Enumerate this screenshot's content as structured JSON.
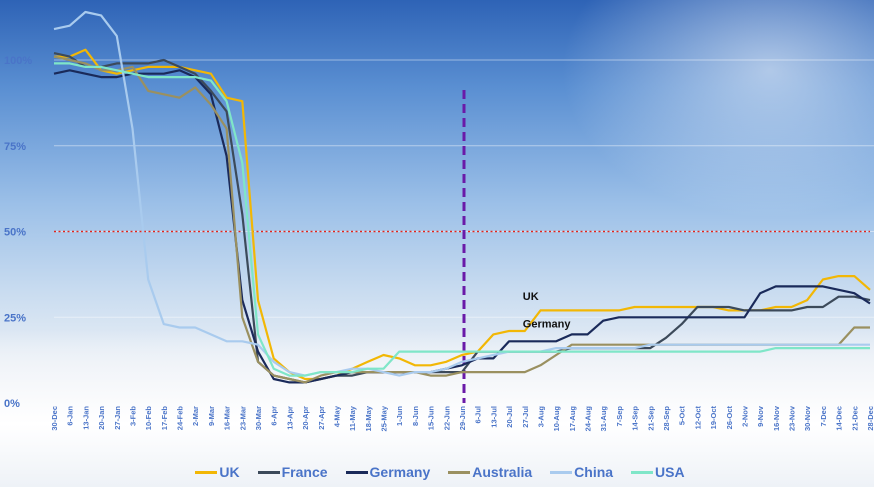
{
  "chart_data": {
    "type": "line",
    "title": "",
    "xlabel": "",
    "ylabel": "",
    "ylim": [
      0,
      100
    ],
    "y_ticks": [
      "0%",
      "25%",
      "50%",
      "75%",
      "100%"
    ],
    "x_ticks": [
      "30-Dec",
      "6-Jan",
      "13-Jan",
      "20-Jan",
      "27-Jan",
      "3-Feb",
      "10-Feb",
      "17-Feb",
      "24-Feb",
      "2-Mar",
      "9-Mar",
      "16-Mar",
      "23-Mar",
      "30-Mar",
      "6-Apr",
      "13-Apr",
      "20-Apr",
      "27-Apr",
      "4-May",
      "11-May",
      "18-May",
      "25-May",
      "1-Jun",
      "8-Jun",
      "15-Jun",
      "22-Jun",
      "29-Jun",
      "6-Jul",
      "13-Jul",
      "20-Jul",
      "27-Jul",
      "3-Aug",
      "10-Aug",
      "17-Aug",
      "24-Aug",
      "31-Aug",
      "7-Sep",
      "14-Sep",
      "21-Sep",
      "28-Sep",
      "5-Oct",
      "12-Oct",
      "19-Oct",
      "26-Oct",
      "2-Nov",
      "9-Nov",
      "16-Nov",
      "23-Nov",
      "30-Nov",
      "7-Dec",
      "14-Dec",
      "21-Dec",
      "28-Dec"
    ],
    "grid": true,
    "legend_position": "bottom",
    "reference_lines": [
      {
        "orientation": "horizontal",
        "value": 50,
        "color": "#e0261e",
        "style": "dotted"
      },
      {
        "orientation": "vertical",
        "at": "29-Jun",
        "color": "#6a1aa8",
        "style": "dashed"
      }
    ],
    "annotations": [
      {
        "text": "UK",
        "at": "27-Jul",
        "value": 30
      },
      {
        "text": "Germany",
        "at": "27-Jul",
        "value": 22
      }
    ],
    "series": [
      {
        "name": "UK",
        "color": "#f2b705",
        "values": [
          101,
          101,
          103,
          97,
          96,
          97,
          98,
          98,
          98,
          97,
          96,
          89,
          88,
          30,
          13,
          9,
          7,
          7,
          8,
          10,
          12,
          14,
          13,
          11,
          11,
          12,
          14,
          15,
          20,
          21,
          21,
          27,
          27,
          27,
          27,
          27,
          27,
          28,
          28,
          28,
          28,
          28,
          28,
          27,
          27,
          27,
          28,
          28,
          30,
          36,
          37,
          37,
          33
        ]
      },
      {
        "name": "France",
        "color": "#3c4a5a",
        "values": [
          102,
          101,
          98,
          98,
          99,
          99,
          99,
          100,
          98,
          96,
          91,
          85,
          55,
          12,
          8,
          7,
          6,
          7,
          8,
          8,
          9,
          9,
          9,
          9,
          9,
          9,
          9,
          15,
          15,
          15,
          15,
          15,
          15,
          16,
          16,
          16,
          16,
          16,
          16,
          19,
          23,
          28,
          28,
          28,
          27,
          27,
          27,
          27,
          28,
          28,
          31,
          31,
          30
        ]
      },
      {
        "name": "Germany",
        "color": "#1a2a5a",
        "values": [
          96,
          97,
          96,
          95,
          95,
          96,
          96,
          96,
          97,
          95,
          90,
          72,
          30,
          15,
          7,
          6,
          6,
          7,
          8,
          9,
          9,
          9,
          9,
          9,
          9,
          10,
          11,
          13,
          13,
          18,
          18,
          18,
          18,
          20,
          20,
          24,
          25,
          25,
          25,
          25,
          25,
          25,
          25,
          25,
          25,
          32,
          34,
          34,
          34,
          34,
          33,
          32,
          29
        ]
      },
      {
        "name": "Australia",
        "color": "#9a9060",
        "values": [
          101,
          100,
          99,
          97,
          97,
          98,
          91,
          90,
          89,
          92,
          87,
          80,
          25,
          12,
          8,
          7,
          6,
          8,
          9,
          9,
          9,
          9,
          9,
          9,
          8,
          8,
          9,
          9,
          9,
          9,
          9,
          11,
          14,
          17,
          17,
          17,
          17,
          17,
          17,
          17,
          17,
          17,
          17,
          17,
          17,
          17,
          17,
          17,
          17,
          17,
          17,
          22,
          22
        ]
      },
      {
        "name": "China",
        "color": "#a9cbee",
        "values": [
          109,
          110,
          114,
          113,
          107,
          80,
          36,
          23,
          22,
          22,
          20,
          18,
          18,
          17,
          12,
          9,
          8,
          9,
          9,
          10,
          10,
          9,
          8,
          9,
          9,
          10,
          12,
          13,
          14,
          15,
          15,
          15,
          16,
          16,
          16,
          16,
          16,
          16,
          17,
          17,
          17,
          17,
          17,
          17,
          17,
          17,
          17,
          17,
          17,
          17,
          17,
          17,
          17
        ]
      },
      {
        "name": "USA",
        "color": "#7fe6c8",
        "values": [
          99,
          99,
          98,
          98,
          97,
          96,
          95,
          95,
          95,
          95,
          94,
          88,
          70,
          20,
          10,
          8,
          8,
          9,
          9,
          9,
          10,
          10,
          15,
          15,
          15,
          15,
          15,
          15,
          15,
          15,
          15,
          15,
          15,
          15,
          15,
          15,
          15,
          15,
          15,
          15,
          15,
          15,
          15,
          15,
          15,
          15,
          16,
          16,
          16,
          16,
          16,
          16,
          16
        ]
      }
    ]
  }
}
